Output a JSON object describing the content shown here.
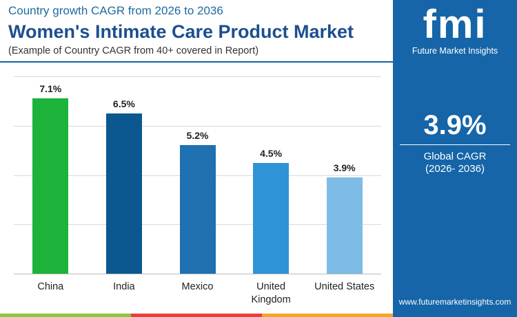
{
  "header": {
    "subtitle": "Country growth CAGR from 2026 to 2036",
    "note": "(Example of Country CAGR from 40+ covered in Report)"
  },
  "chart_data": {
    "type": "bar",
    "title": "Women's Intimate Care Product Market",
    "categories": [
      "China",
      "India",
      "Mexico",
      "United Kingdom",
      "United States"
    ],
    "values": [
      7.1,
      6.5,
      5.2,
      4.5,
      3.9
    ],
    "value_labels": [
      "7.1%",
      "6.5%",
      "5.2%",
      "4.5%",
      "3.9%"
    ],
    "colors": [
      "#1db33a",
      "#0b5890",
      "#1f71b1",
      "#2f93d7",
      "#7dbce6"
    ],
    "ylim": [
      0,
      8
    ],
    "yticks": [
      0,
      2,
      4,
      6,
      8
    ],
    "grid": true
  },
  "panel": {
    "logo": "fmi",
    "brand": "Future Market Insights",
    "global_cagr": "3.9%",
    "global_label": "Global CAGR",
    "period": "(2026- 2036)",
    "website": "www.futuremarketinsights.com"
  }
}
